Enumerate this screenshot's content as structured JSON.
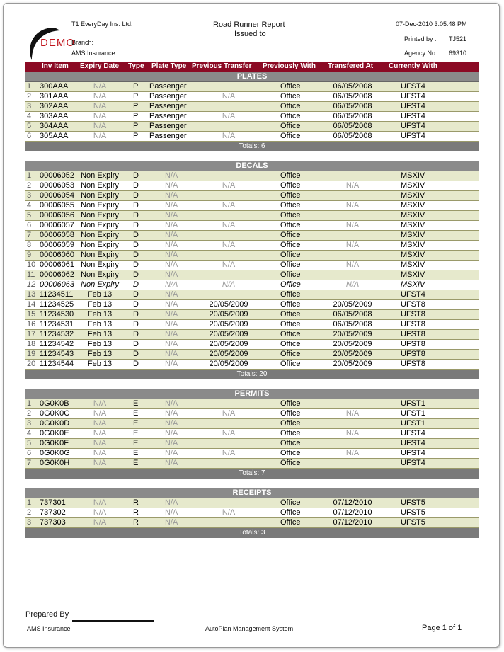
{
  "header": {
    "company": "T1 EveryDay Ins. Ltd.",
    "branch_label": "Branch:",
    "branch": "AMS  Insurance",
    "title": "Road Runner Report",
    "subtitle": "Issued to",
    "datetime": "07-Dec-2010 3:05:48 PM",
    "printed_by_label": "Printed by :",
    "printed_by": "TJ521",
    "agency_label": "Agency No:",
    "agency": "69310",
    "logo_text": "DEMO"
  },
  "columns": [
    "Inv Item",
    "Expiry Date",
    "Type",
    "Plate Type",
    "Previous Transfer",
    "Previously With",
    "Transfered At",
    "Currently With"
  ],
  "colors": {
    "header": "#8b0a24",
    "section": "#8a8a8a",
    "row_alt": "#e6e9cc"
  },
  "sections": [
    {
      "title": "PLATES",
      "totals": "Totals: 6",
      "rows": [
        [
          "1",
          "300AAA",
          "N/A",
          "P",
          "Passenger",
          "",
          "Office",
          "06/05/2008",
          "UFST4"
        ],
        [
          "2",
          "301AAA",
          "N/A",
          "P",
          "Passenger",
          "N/A",
          "Office",
          "06/05/2008",
          "UFST4"
        ],
        [
          "3",
          "302AAA",
          "N/A",
          "P",
          "Passenger",
          "",
          "Office",
          "06/05/2008",
          "UFST4"
        ],
        [
          "4",
          "303AAA",
          "N/A",
          "P",
          "Passenger",
          "N/A",
          "Office",
          "06/05/2008",
          "UFST4"
        ],
        [
          "5",
          "304AAA",
          "N/A",
          "P",
          "Passenger",
          "",
          "Office",
          "06/05/2008",
          "UFST4"
        ],
        [
          "6",
          "305AAA",
          "N/A",
          "P",
          "Passenger",
          "N/A",
          "Office",
          "06/05/2008",
          "UFST4"
        ]
      ]
    },
    {
      "title": "DECALS",
      "totals": "Totals: 20",
      "rows": [
        [
          "1",
          "00006052",
          "Non Expiry",
          "D",
          "N/A",
          "",
          "Office",
          "",
          "MSXIV"
        ],
        [
          "2",
          "00006053",
          "Non Expiry",
          "D",
          "N/A",
          "N/A",
          "Office",
          "N/A",
          "MSXIV"
        ],
        [
          "3",
          "00006054",
          "Non Expiry",
          "D",
          "N/A",
          "",
          "Office",
          "",
          "MSXIV"
        ],
        [
          "4",
          "00006055",
          "Non Expiry",
          "D",
          "N/A",
          "N/A",
          "Office",
          "N/A",
          "MSXIV"
        ],
        [
          "5",
          "00006056",
          "Non Expiry",
          "D",
          "N/A",
          "",
          "Office",
          "",
          "MSXIV"
        ],
        [
          "6",
          "00006057",
          "Non Expiry",
          "D",
          "N/A",
          "N/A",
          "Office",
          "N/A",
          "MSXIV"
        ],
        [
          "7",
          "00006058",
          "Non Expiry",
          "D",
          "N/A",
          "",
          "Office",
          "",
          "MSXIV"
        ],
        [
          "8",
          "00006059",
          "Non Expiry",
          "D",
          "N/A",
          "N/A",
          "Office",
          "N/A",
          "MSXIV"
        ],
        [
          "9",
          "00006060",
          "Non Expiry",
          "D",
          "N/A",
          "",
          "Office",
          "",
          "MSXIV"
        ],
        [
          "10",
          "00006061",
          "Non Expiry",
          "D",
          "N/A",
          "N/A",
          "Office",
          "N/A",
          "MSXIV"
        ],
        [
          "11",
          "00006062",
          "Non Expiry",
          "D",
          "N/A",
          "",
          "Office",
          "",
          "MSXIV"
        ],
        [
          "12",
          "00006063",
          "Non Expiry",
          "D",
          "N/A",
          "N/A",
          "Office",
          "N/A",
          "MSXIV"
        ],
        [
          "13",
          "11234511",
          "Feb 13",
          "D",
          "N/A",
          "",
          "Office",
          "",
          "UFST4"
        ],
        [
          "14",
          "11234525",
          "Feb 13",
          "D",
          "N/A",
          "20/05/2009",
          "Office",
          "20/05/2009",
          "UFST8"
        ],
        [
          "15",
          "11234530",
          "Feb 13",
          "D",
          "N/A",
          "20/05/2009",
          "Office",
          "06/05/2008",
          "UFST8"
        ],
        [
          "16",
          "11234531",
          "Feb 13",
          "D",
          "N/A",
          "20/05/2009",
          "Office",
          "06/05/2008",
          "UFST8"
        ],
        [
          "17",
          "11234532",
          "Feb 13",
          "D",
          "N/A",
          "20/05/2009",
          "Office",
          "20/05/2009",
          "UFST8"
        ],
        [
          "18",
          "11234542",
          "Feb 13",
          "D",
          "N/A",
          "20/05/2009",
          "Office",
          "20/05/2009",
          "UFST8"
        ],
        [
          "19",
          "11234543",
          "Feb 13",
          "D",
          "N/A",
          "20/05/2009",
          "Office",
          "20/05/2009",
          "UFST8"
        ],
        [
          "20",
          "11234544",
          "Feb 13",
          "D",
          "N/A",
          "20/05/2009",
          "Office",
          "20/05/2009",
          "UFST8"
        ]
      ]
    },
    {
      "title": "PERMITS",
      "totals": "Totals: 7",
      "rows": [
        [
          "1",
          "0G0K0B",
          "N/A",
          "E",
          "N/A",
          "",
          "Office",
          "",
          "UFST1"
        ],
        [
          "2",
          "0G0K0C",
          "N/A",
          "E",
          "N/A",
          "N/A",
          "Office",
          "N/A",
          "UFST1"
        ],
        [
          "3",
          "0G0K0D",
          "N/A",
          "E",
          "N/A",
          "",
          "Office",
          "",
          "UFST1"
        ],
        [
          "4",
          "0G0K0E",
          "N/A",
          "E",
          "N/A",
          "N/A",
          "Office",
          "N/A",
          "UFST4"
        ],
        [
          "5",
          "0G0K0F",
          "N/A",
          "E",
          "N/A",
          "",
          "Office",
          "",
          "UFST4"
        ],
        [
          "6",
          "0G0K0G",
          "N/A",
          "E",
          "N/A",
          "N/A",
          "Office",
          "N/A",
          "UFST4"
        ],
        [
          "7",
          "0G0K0H",
          "N/A",
          "E",
          "N/A",
          "",
          "Office",
          "",
          "UFST4"
        ]
      ]
    },
    {
      "title": "RECEIPTS",
      "totals": "Totals: 3",
      "rows": [
        [
          "1",
          "737301",
          "N/A",
          "R",
          "N/A",
          "",
          "Office",
          "07/12/2010",
          "UFST5"
        ],
        [
          "2",
          "737302",
          "N/A",
          "R",
          "N/A",
          "N/A",
          "Office",
          "07/12/2010",
          "UFST5"
        ],
        [
          "3",
          "737303",
          "N/A",
          "R",
          "N/A",
          "",
          "Office",
          "07/12/2010",
          "UFST5"
        ]
      ]
    }
  ],
  "italic_row": "00006063",
  "footer": {
    "prepared_by": "Prepared By",
    "company": "AMS  Insurance",
    "system": "AutoPlan Management System",
    "page": "Page 1 of  1"
  }
}
